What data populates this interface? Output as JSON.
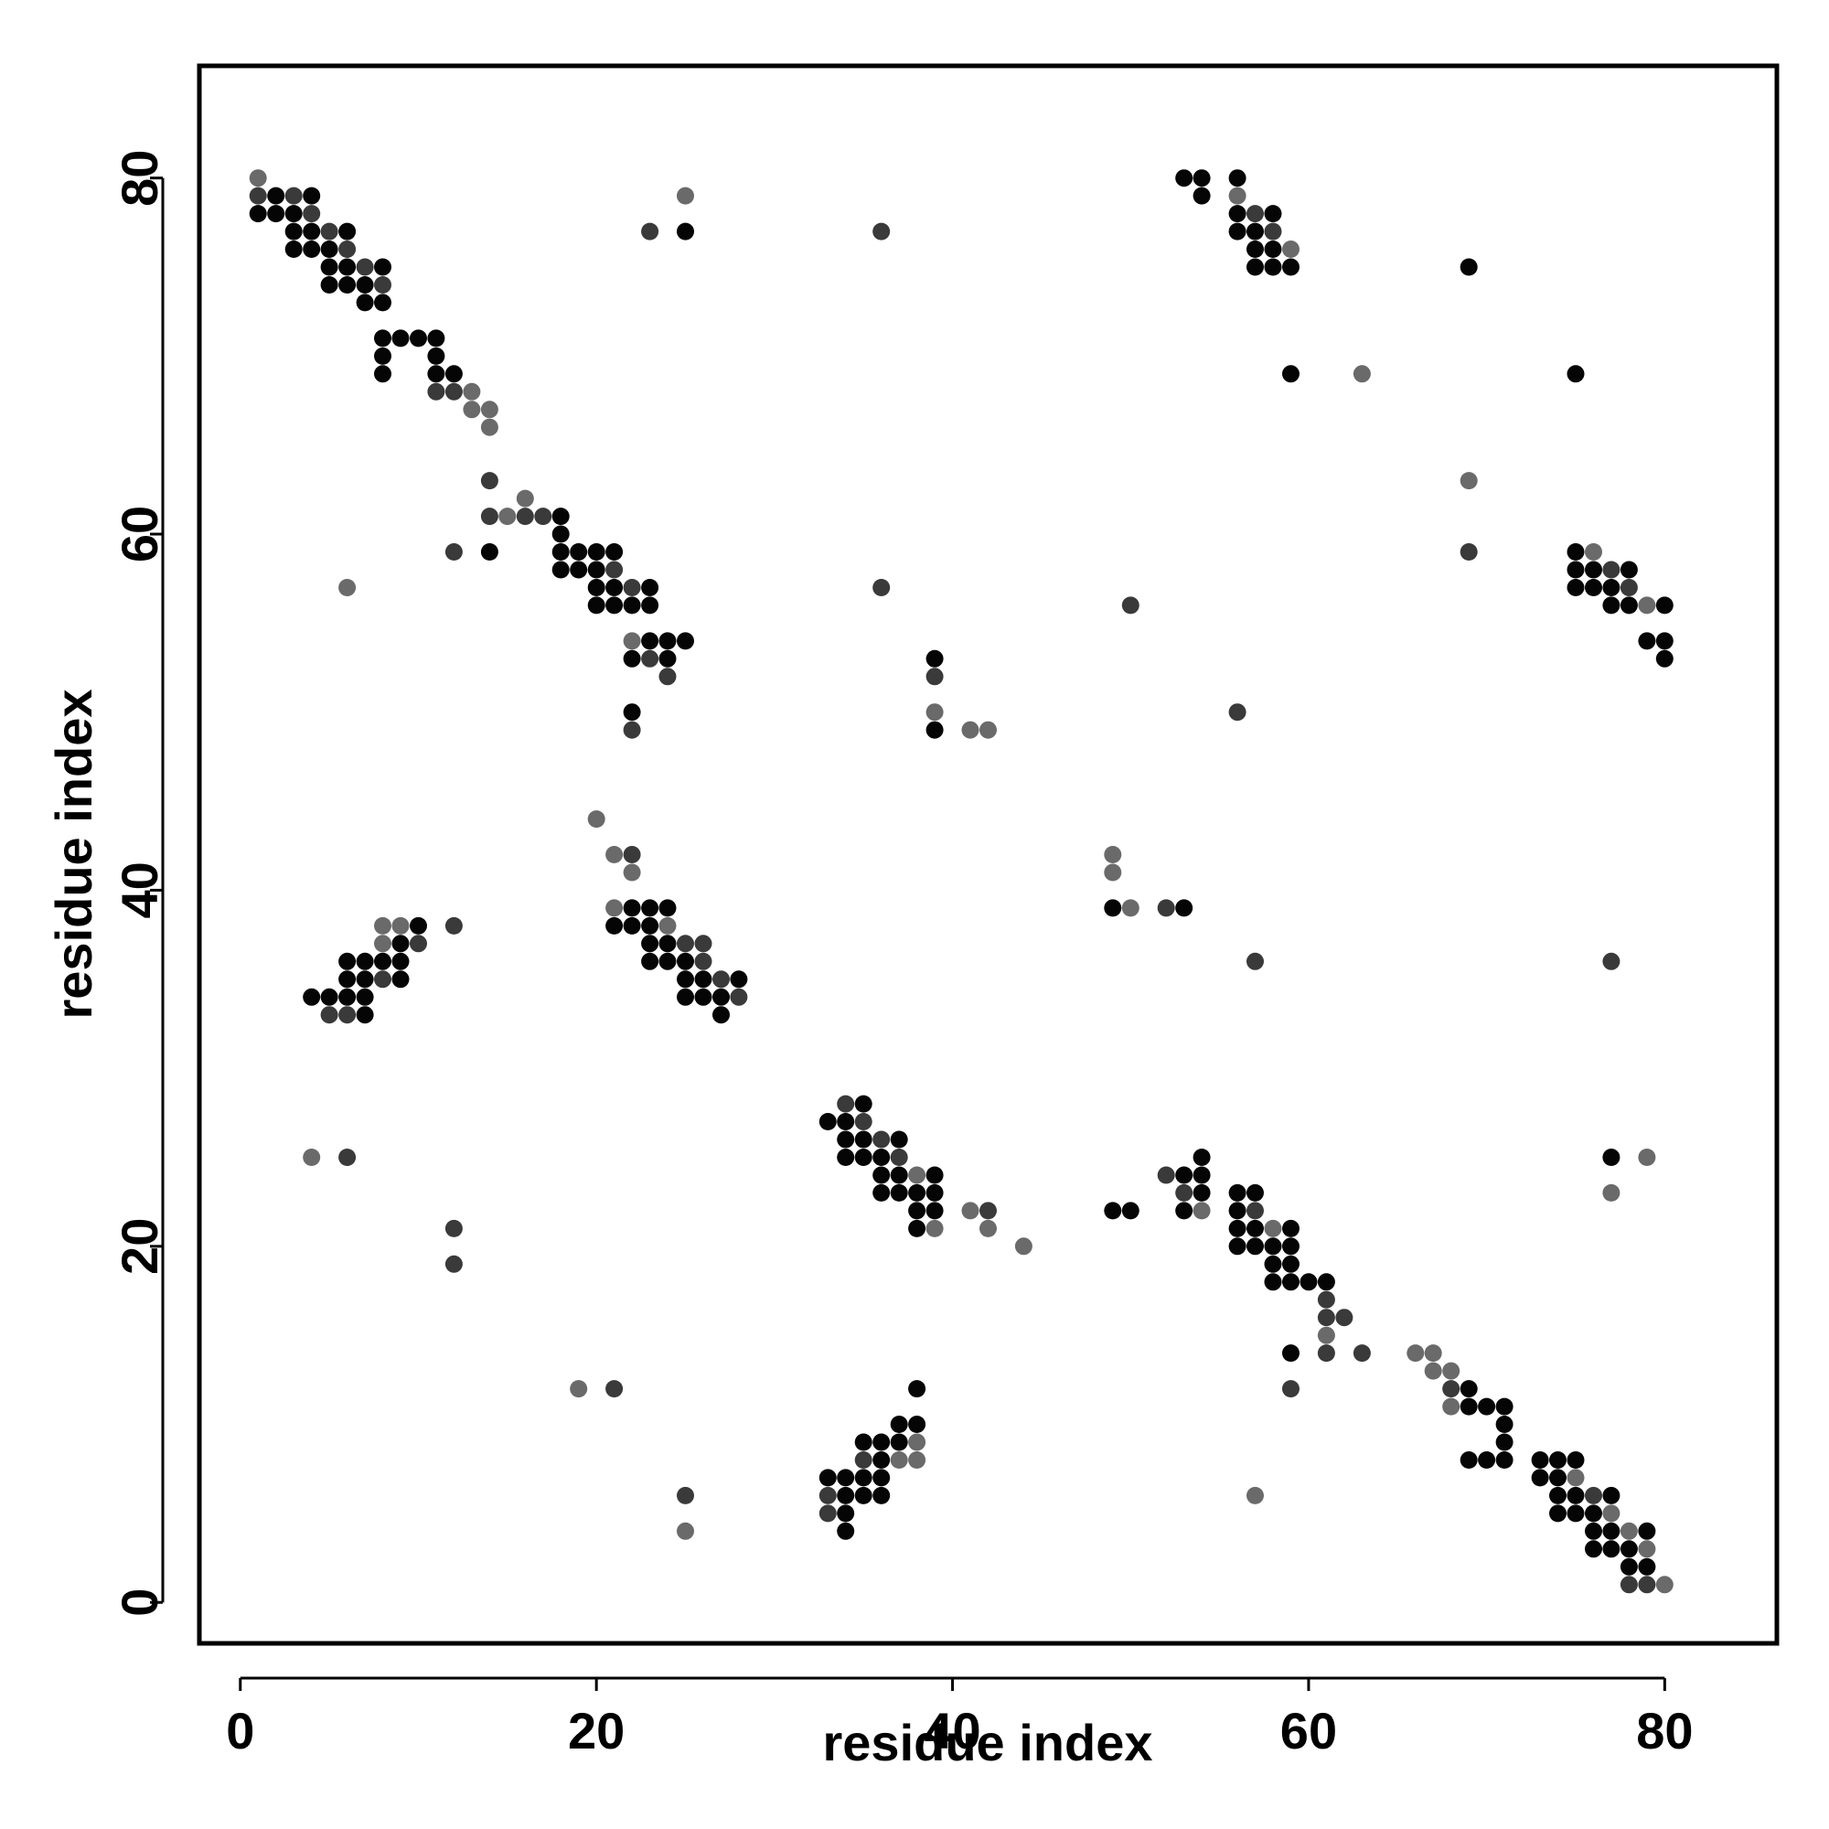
{
  "chart_data": {
    "type": "scatter",
    "title": "",
    "xlabel": "residue index",
    "ylabel": "residue index",
    "xlim": [
      -2.3,
      86.3
    ],
    "ylim": [
      -2.3,
      86.3
    ],
    "xticks": [
      "0",
      "20",
      "40",
      "60",
      "80"
    ],
    "yticks": [
      "0",
      "20",
      "40",
      "60",
      "80"
    ],
    "grid": false,
    "legend": "none",
    "shade_legend": {
      "1": "#050505",
      "2": "#3a3a3a",
      "3": "#6a6a6a"
    },
    "points": [
      [
        1,
        80,
        3
      ],
      [
        1,
        79,
        2
      ],
      [
        2,
        79,
        1
      ],
      [
        3,
        79,
        2
      ],
      [
        4,
        79,
        1
      ],
      [
        1,
        78,
        1
      ],
      [
        2,
        78,
        1
      ],
      [
        3,
        78,
        1
      ],
      [
        4,
        78,
        2
      ],
      [
        3,
        77,
        1
      ],
      [
        4,
        77,
        1
      ],
      [
        5,
        77,
        2
      ],
      [
        6,
        77,
        1
      ],
      [
        3,
        76,
        1
      ],
      [
        4,
        76,
        1
      ],
      [
        5,
        76,
        1
      ],
      [
        6,
        76,
        2
      ],
      [
        5,
        75,
        1
      ],
      [
        6,
        75,
        1
      ],
      [
        7,
        75,
        2
      ],
      [
        8,
        75,
        1
      ],
      [
        5,
        74,
        1
      ],
      [
        6,
        74,
        1
      ],
      [
        7,
        74,
        1
      ],
      [
        8,
        74,
        2
      ],
      [
        7,
        73,
        1
      ],
      [
        8,
        73,
        1
      ],
      [
        8,
        71,
        1
      ],
      [
        9,
        71,
        1
      ],
      [
        10,
        71,
        1
      ],
      [
        11,
        71,
        1
      ],
      [
        8,
        70,
        1
      ],
      [
        11,
        70,
        1
      ],
      [
        8,
        69,
        1
      ],
      [
        11,
        69,
        1
      ],
      [
        12,
        69,
        1
      ],
      [
        11,
        68,
        2
      ],
      [
        12,
        68,
        2
      ],
      [
        13,
        68,
        3
      ],
      [
        13,
        67,
        3
      ],
      [
        14,
        67,
        3
      ],
      [
        14,
        66,
        3
      ],
      [
        14,
        63,
        2
      ],
      [
        16,
        62,
        3
      ],
      [
        14,
        61,
        2
      ],
      [
        15,
        61,
        3
      ],
      [
        16,
        61,
        2
      ],
      [
        17,
        61,
        2
      ],
      [
        18,
        61,
        1
      ],
      [
        18,
        60,
        1
      ],
      [
        12,
        59,
        2
      ],
      [
        14,
        59,
        1
      ],
      [
        18,
        59,
        1
      ],
      [
        19,
        59,
        1
      ],
      [
        20,
        59,
        1
      ],
      [
        21,
        59,
        1
      ],
      [
        18,
        58,
        1
      ],
      [
        19,
        58,
        1
      ],
      [
        20,
        58,
        1
      ],
      [
        21,
        58,
        2
      ],
      [
        20,
        57,
        1
      ],
      [
        21,
        57,
        1
      ],
      [
        22,
        57,
        2
      ],
      [
        23,
        57,
        1
      ],
      [
        20,
        56,
        1
      ],
      [
        21,
        56,
        1
      ],
      [
        22,
        56,
        1
      ],
      [
        23,
        56,
        1
      ],
      [
        22,
        54,
        3
      ],
      [
        23,
        54,
        1
      ],
      [
        24,
        54,
        1
      ],
      [
        25,
        54,
        1
      ],
      [
        22,
        53,
        1
      ],
      [
        23,
        53,
        2
      ],
      [
        24,
        53,
        1
      ],
      [
        24,
        52,
        2
      ],
      [
        22,
        50,
        1
      ],
      [
        22,
        49,
        2
      ],
      [
        6,
        57,
        3
      ],
      [
        23,
        77,
        2
      ],
      [
        25,
        79,
        3
      ],
      [
        25,
        77,
        1
      ],
      [
        36,
        77,
        2
      ],
      [
        36,
        57,
        2
      ],
      [
        53,
        80,
        1
      ],
      [
        54,
        80,
        1
      ],
      [
        56,
        80,
        1
      ],
      [
        54,
        79,
        1
      ],
      [
        56,
        79,
        3
      ],
      [
        56,
        78,
        1
      ],
      [
        57,
        78,
        2
      ],
      [
        58,
        78,
        1
      ],
      [
        56,
        77,
        1
      ],
      [
        57,
        77,
        1
      ],
      [
        58,
        77,
        2
      ],
      [
        57,
        76,
        1
      ],
      [
        58,
        76,
        1
      ],
      [
        59,
        76,
        3
      ],
      [
        57,
        75,
        1
      ],
      [
        58,
        75,
        1
      ],
      [
        59,
        75,
        1
      ],
      [
        69,
        75,
        1
      ],
      [
        59,
        69,
        1
      ],
      [
        63,
        69,
        3
      ],
      [
        75,
        69,
        1
      ],
      [
        69,
        63,
        3
      ],
      [
        69,
        59,
        2
      ],
      [
        75,
        59,
        1
      ],
      [
        76,
        59,
        3
      ],
      [
        75,
        58,
        1
      ],
      [
        76,
        58,
        1
      ],
      [
        77,
        58,
        2
      ],
      [
        78,
        58,
        1
      ],
      [
        75,
        57,
        1
      ],
      [
        76,
        57,
        1
      ],
      [
        77,
        57,
        1
      ],
      [
        78,
        57,
        2
      ],
      [
        77,
        56,
        1
      ],
      [
        78,
        56,
        1
      ],
      [
        79,
        56,
        3
      ],
      [
        80,
        56,
        1
      ],
      [
        79,
        54,
        1
      ],
      [
        80,
        54,
        1
      ],
      [
        80,
        53,
        1
      ],
      [
        50,
        56,
        2
      ],
      [
        56,
        50,
        2
      ],
      [
        39,
        53,
        1
      ],
      [
        39,
        52,
        2
      ],
      [
        39,
        50,
        3
      ],
      [
        39,
        49,
        1
      ],
      [
        41,
        49,
        3
      ],
      [
        42,
        49,
        3
      ],
      [
        20,
        44,
        3
      ],
      [
        21,
        42,
        3
      ],
      [
        22,
        42,
        2
      ],
      [
        22,
        41,
        3
      ],
      [
        21,
        39,
        3
      ],
      [
        22,
        39,
        1
      ],
      [
        23,
        39,
        1
      ],
      [
        24,
        39,
        1
      ],
      [
        21,
        38,
        1
      ],
      [
        22,
        38,
        1
      ],
      [
        23,
        38,
        1
      ],
      [
        24,
        38,
        3
      ],
      [
        23,
        37,
        1
      ],
      [
        24,
        37,
        1
      ],
      [
        25,
        37,
        2
      ],
      [
        26,
        37,
        2
      ],
      [
        23,
        36,
        1
      ],
      [
        24,
        36,
        1
      ],
      [
        25,
        36,
        1
      ],
      [
        26,
        36,
        2
      ],
      [
        25,
        35,
        1
      ],
      [
        26,
        35,
        1
      ],
      [
        27,
        35,
        2
      ],
      [
        28,
        35,
        1
      ],
      [
        25,
        34,
        1
      ],
      [
        26,
        34,
        1
      ],
      [
        27,
        34,
        1
      ],
      [
        28,
        34,
        2
      ],
      [
        27,
        33,
        1
      ],
      [
        8,
        38,
        3
      ],
      [
        9,
        38,
        3
      ],
      [
        10,
        38,
        1
      ],
      [
        12,
        38,
        2
      ],
      [
        8,
        37,
        3
      ],
      [
        9,
        37,
        1
      ],
      [
        10,
        37,
        2
      ],
      [
        6,
        36,
        1
      ],
      [
        7,
        36,
        1
      ],
      [
        8,
        36,
        1
      ],
      [
        9,
        36,
        1
      ],
      [
        6,
        35,
        1
      ],
      [
        7,
        35,
        1
      ],
      [
        8,
        35,
        2
      ],
      [
        9,
        35,
        1
      ],
      [
        4,
        34,
        1
      ],
      [
        5,
        34,
        1
      ],
      [
        6,
        34,
        1
      ],
      [
        7,
        34,
        1
      ],
      [
        5,
        33,
        2
      ],
      [
        6,
        33,
        2
      ],
      [
        7,
        33,
        1
      ],
      [
        49,
        42,
        3
      ],
      [
        49,
        41,
        3
      ],
      [
        49,
        39,
        1
      ],
      [
        50,
        39,
        3
      ],
      [
        52,
        39,
        2
      ],
      [
        53,
        39,
        1
      ],
      [
        57,
        36,
        2
      ],
      [
        77,
        36,
        2
      ],
      [
        33,
        27,
        1
      ],
      [
        34,
        28,
        2
      ],
      [
        35,
        28,
        1
      ],
      [
        34,
        27,
        1
      ],
      [
        35,
        27,
        2
      ],
      [
        34,
        26,
        1
      ],
      [
        35,
        26,
        1
      ],
      [
        36,
        26,
        2
      ],
      [
        37,
        26,
        1
      ],
      [
        34,
        25,
        1
      ],
      [
        35,
        25,
        1
      ],
      [
        36,
        25,
        1
      ],
      [
        37,
        25,
        2
      ],
      [
        36,
        24,
        1
      ],
      [
        37,
        24,
        1
      ],
      [
        38,
        24,
        3
      ],
      [
        39,
        24,
        1
      ],
      [
        36,
        23,
        1
      ],
      [
        37,
        23,
        1
      ],
      [
        38,
        23,
        1
      ],
      [
        39,
        23,
        1
      ],
      [
        39,
        22,
        1
      ],
      [
        38,
        22,
        1
      ],
      [
        38,
        21,
        1
      ],
      [
        39,
        21,
        3
      ],
      [
        41,
        22,
        3
      ],
      [
        42,
        22,
        2
      ],
      [
        42,
        21,
        3
      ],
      [
        44,
        20,
        3
      ],
      [
        49,
        22,
        1
      ],
      [
        50,
        22,
        1
      ],
      [
        52,
        24,
        2
      ],
      [
        53,
        24,
        1
      ],
      [
        54,
        25,
        1
      ],
      [
        54,
        24,
        1
      ],
      [
        53,
        23,
        2
      ],
      [
        54,
        23,
        1
      ],
      [
        53,
        22,
        1
      ],
      [
        54,
        22,
        3
      ],
      [
        4,
        25,
        3
      ],
      [
        6,
        25,
        2
      ],
      [
        12,
        21,
        2
      ],
      [
        12,
        19,
        2
      ],
      [
        56,
        23,
        1
      ],
      [
        57,
        23,
        1
      ],
      [
        56,
        22,
        1
      ],
      [
        57,
        22,
        2
      ],
      [
        56,
        21,
        1
      ],
      [
        57,
        21,
        1
      ],
      [
        58,
        21,
        3
      ],
      [
        59,
        21,
        1
      ],
      [
        56,
        20,
        1
      ],
      [
        57,
        20,
        1
      ],
      [
        58,
        20,
        1
      ],
      [
        59,
        20,
        1
      ],
      [
        58,
        19,
        1
      ],
      [
        59,
        19,
        1
      ],
      [
        58,
        18,
        1
      ],
      [
        59,
        18,
        1
      ],
      [
        60,
        18,
        1
      ],
      [
        61,
        18,
        1
      ],
      [
        61,
        17,
        2
      ],
      [
        61,
        16,
        2
      ],
      [
        62,
        16,
        2
      ],
      [
        61,
        15,
        3
      ],
      [
        61,
        14,
        2
      ],
      [
        63,
        14,
        2
      ],
      [
        59,
        14,
        1
      ],
      [
        59,
        12,
        2
      ],
      [
        66,
        14,
        3
      ],
      [
        67,
        14,
        3
      ],
      [
        67,
        13,
        3
      ],
      [
        68,
        13,
        3
      ],
      [
        68,
        12,
        2
      ],
      [
        69,
        12,
        1
      ],
      [
        68,
        11,
        3
      ],
      [
        69,
        11,
        1
      ],
      [
        70,
        11,
        1
      ],
      [
        71,
        11,
        1
      ],
      [
        71,
        10,
        1
      ],
      [
        71,
        9,
        1
      ],
      [
        69,
        8,
        1
      ],
      [
        70,
        8,
        1
      ],
      [
        71,
        8,
        1
      ],
      [
        73,
        8,
        1
      ],
      [
        74,
        8,
        1
      ],
      [
        75,
        8,
        1
      ],
      [
        73,
        7,
        1
      ],
      [
        74,
        7,
        1
      ],
      [
        75,
        7,
        3
      ],
      [
        74,
        6,
        1
      ],
      [
        75,
        6,
        1
      ],
      [
        76,
        6,
        2
      ],
      [
        77,
        6,
        1
      ],
      [
        74,
        5,
        1
      ],
      [
        75,
        5,
        1
      ],
      [
        76,
        5,
        1
      ],
      [
        77,
        5,
        3
      ],
      [
        76,
        4,
        1
      ],
      [
        77,
        4,
        1
      ],
      [
        78,
        4,
        3
      ],
      [
        79,
        4,
        1
      ],
      [
        76,
        3,
        1
      ],
      [
        77,
        3,
        1
      ],
      [
        78,
        3,
        1
      ],
      [
        79,
        3,
        3
      ],
      [
        78,
        2,
        1
      ],
      [
        79,
        2,
        1
      ],
      [
        78,
        1,
        2
      ],
      [
        79,
        1,
        2
      ],
      [
        80,
        1,
        3
      ],
      [
        77,
        25,
        1
      ],
      [
        79,
        25,
        3
      ],
      [
        77,
        23,
        3
      ],
      [
        19,
        12,
        3
      ],
      [
        21,
        12,
        2
      ],
      [
        25,
        6,
        2
      ],
      [
        25,
        4,
        3
      ],
      [
        57,
        6,
        3
      ],
      [
        38,
        12,
        1
      ],
      [
        37,
        10,
        1
      ],
      [
        38,
        10,
        1
      ],
      [
        35,
        9,
        1
      ],
      [
        36,
        9,
        1
      ],
      [
        37,
        9,
        1
      ],
      [
        38,
        9,
        3
      ],
      [
        35,
        8,
        2
      ],
      [
        36,
        8,
        1
      ],
      [
        37,
        8,
        3
      ],
      [
        38,
        8,
        3
      ],
      [
        33,
        7,
        1
      ],
      [
        34,
        7,
        1
      ],
      [
        35,
        7,
        1
      ],
      [
        36,
        7,
        1
      ],
      [
        33,
        6,
        2
      ],
      [
        34,
        6,
        1
      ],
      [
        35,
        6,
        1
      ],
      [
        36,
        6,
        1
      ],
      [
        33,
        5,
        2
      ],
      [
        34,
        5,
        1
      ],
      [
        34,
        4,
        1
      ]
    ]
  }
}
